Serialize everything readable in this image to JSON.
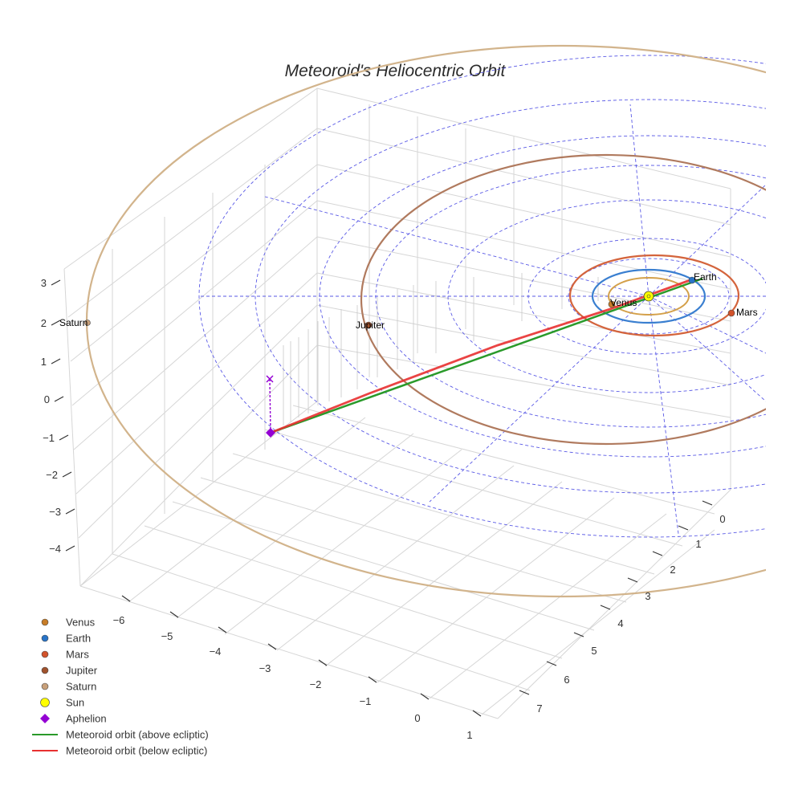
{
  "chart_data": {
    "type": "scatter3d",
    "title": "Meteoroid's Heliocentric Orbit",
    "axes": {
      "x": {
        "label": "",
        "ticks": [
          "−6",
          "−5",
          "−4",
          "−3",
          "−2",
          "−1",
          "0",
          "1"
        ]
      },
      "y": {
        "label": "",
        "ticks": [
          "0",
          "1",
          "2",
          "3",
          "4",
          "5",
          "6",
          "7"
        ]
      },
      "z": {
        "label": "",
        "ticks": [
          "3",
          "2",
          "1",
          "0",
          "−1",
          "−2",
          "−3",
          "−4"
        ]
      }
    },
    "planets": [
      {
        "name": "Venus",
        "color": "#c77d28",
        "orbit_color": "#d4a04a"
      },
      {
        "name": "Earth",
        "color": "#2874c8",
        "orbit_color": "#3a7fd0"
      },
      {
        "name": "Mars",
        "color": "#d2532b",
        "orbit_color": "#d4643c"
      },
      {
        "name": "Jupiter",
        "color": "#a0522d",
        "orbit_color": "#b07a5e"
      },
      {
        "name": "Saturn",
        "color": "#c8a07a",
        "orbit_color": "#d2b48c"
      }
    ],
    "sun": {
      "name": "Sun",
      "color": "#ffff00"
    },
    "aphelion": {
      "name": "Aphelion",
      "color": "#9400d3"
    },
    "meteoroid_above": {
      "name": "Meteoroid orbit (above ecliptic)",
      "color": "#2a9a2a"
    },
    "meteoroid_below": {
      "name": "Meteoroid orbit (below ecliptic)",
      "color": "#e83030"
    },
    "legend": [
      {
        "label": "Venus",
        "marker": "circle",
        "color": "#c77d28"
      },
      {
        "label": "Earth",
        "marker": "circle",
        "color": "#2874c8"
      },
      {
        "label": "Mars",
        "marker": "circle",
        "color": "#d2532b"
      },
      {
        "label": "Jupiter",
        "marker": "circle",
        "color": "#a0522d"
      },
      {
        "label": "Saturn",
        "marker": "circle",
        "color": "#c8a07a"
      },
      {
        "label": "Sun",
        "marker": "circle-lg",
        "color": "#ffff00"
      },
      {
        "label": "Aphelion",
        "marker": "diamond",
        "color": "#9400d3"
      },
      {
        "label": "Meteoroid orbit (above ecliptic)",
        "marker": "line",
        "color": "#2a9a2a"
      },
      {
        "label": "Meteoroid orbit (below ecliptic)",
        "marker": "line",
        "color": "#e83030"
      }
    ],
    "legend_position": "bottom-left"
  }
}
